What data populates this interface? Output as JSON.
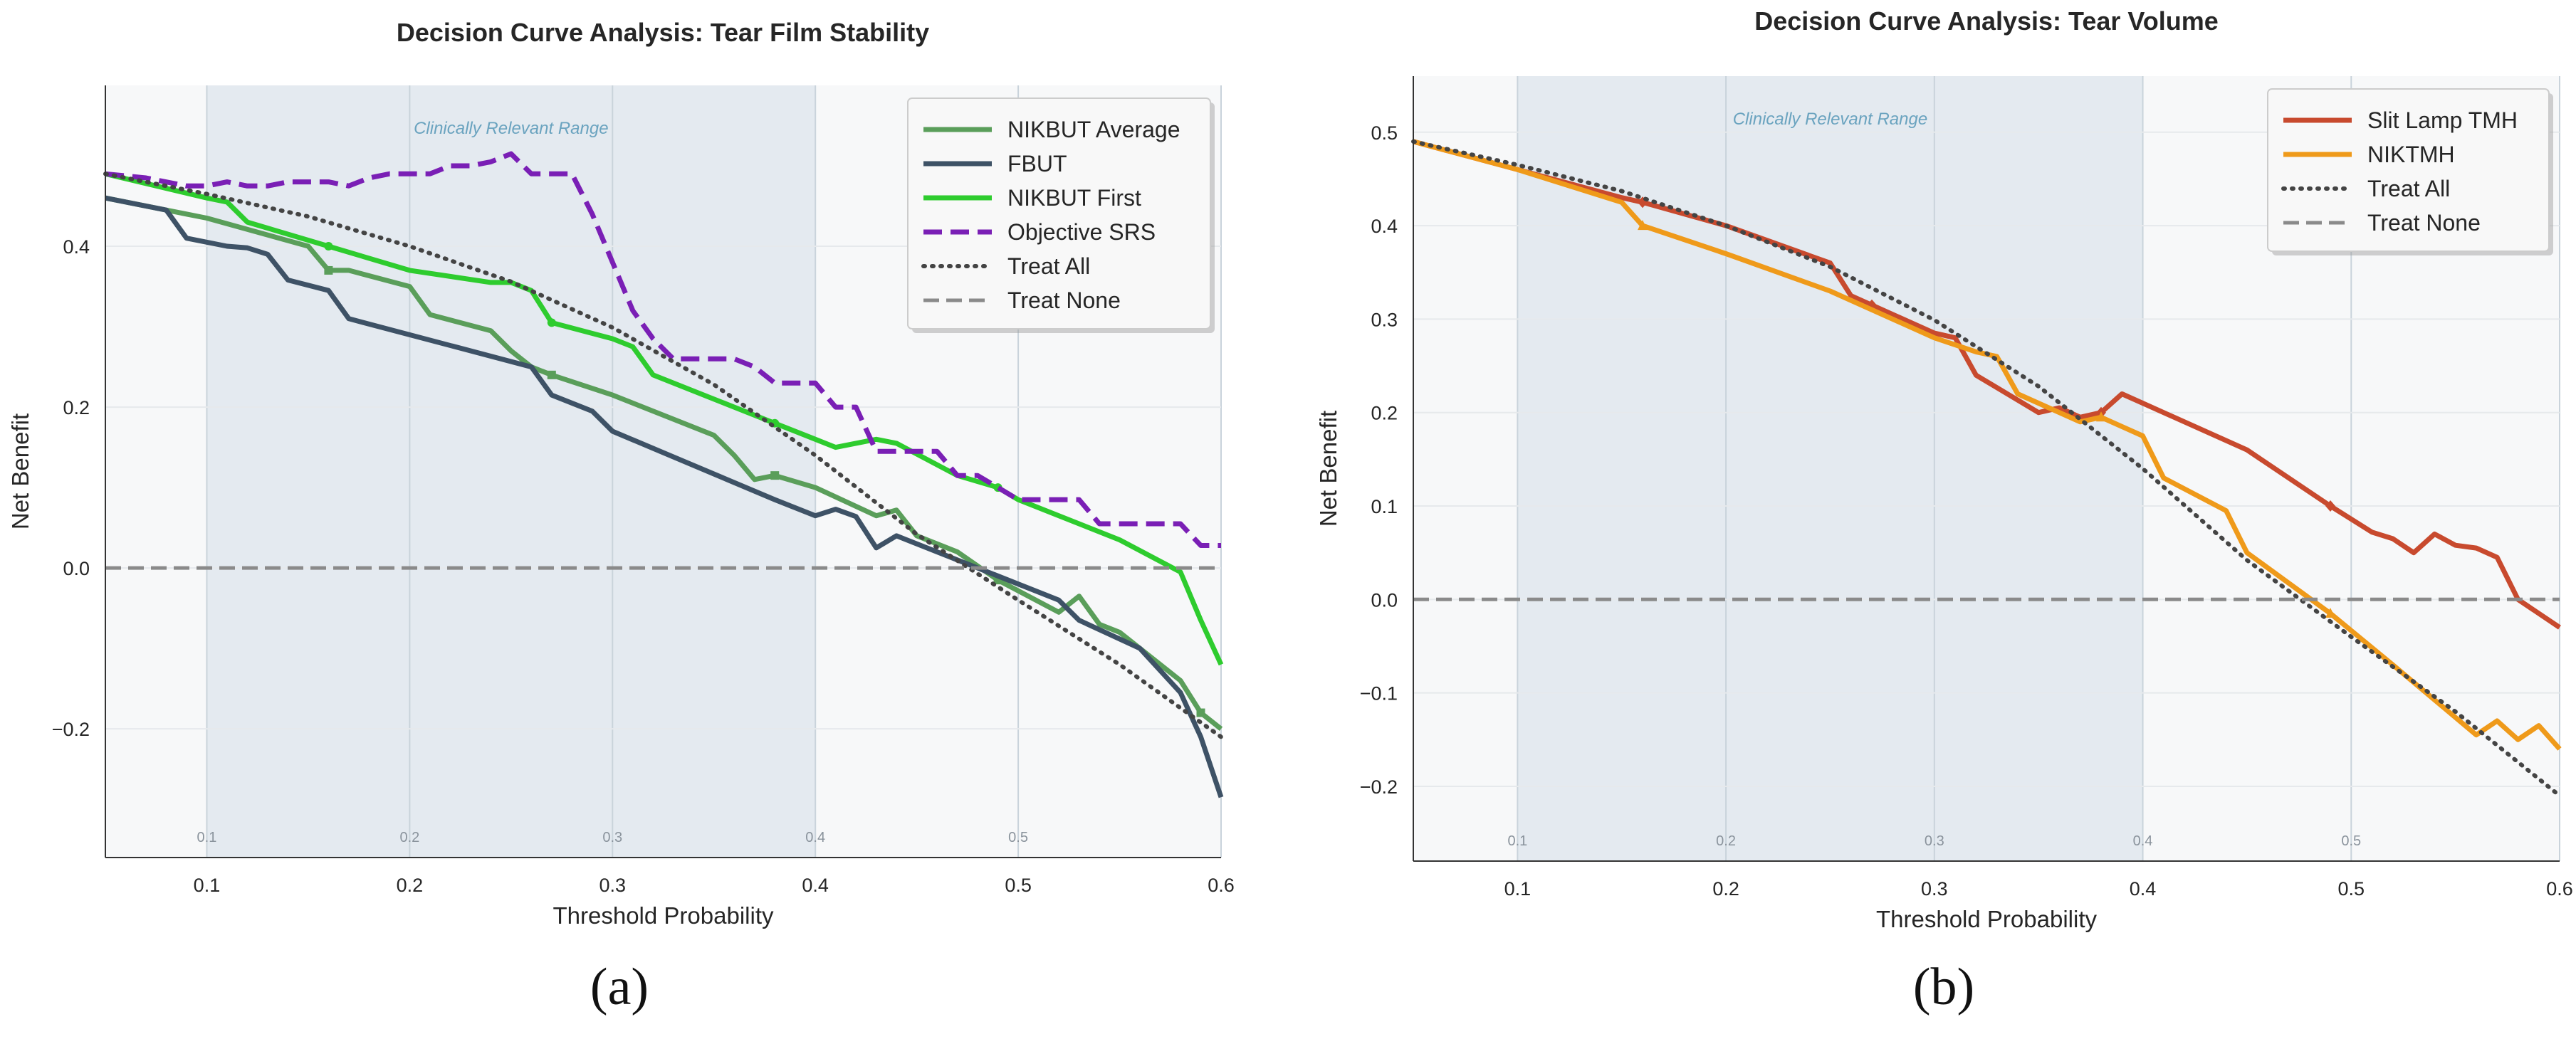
{
  "panel_labels": [
    "(a)",
    "(b)"
  ],
  "chart_data": [
    {
      "type": "line",
      "title": "Decision Curve Analysis: Tear Film Stability",
      "xlabel": "Threshold Probability",
      "ylabel": "Net Benefit",
      "xlim": [
        0.05,
        0.6
      ],
      "ylim": [
        -0.36,
        0.6
      ],
      "xticks": [
        0.1,
        0.2,
        0.3,
        0.4,
        0.5,
        0.6
      ],
      "xtick_labels": [
        "0.1",
        "0.2",
        "0.3",
        "0.4",
        "0.5",
        "0.6"
      ],
      "yticks": [
        -0.2,
        0.0,
        0.2,
        0.4
      ],
      "ytick_labels": [
        "−0.2",
        "0.0",
        "0.2",
        "0.4"
      ],
      "inner_xtick_labels": [
        "0.1",
        "0.2",
        "0.3",
        "0.4",
        "0.5"
      ],
      "shaded_range": [
        0.1,
        0.4
      ],
      "shaded_range_label": "Clinically Relevant Range",
      "grid": true,
      "legend_position": "top-right",
      "series": [
        {
          "name": "NIKBUT Average",
          "color": "#5a9e5a",
          "style": "solid",
          "width": 7,
          "marker": "square",
          "x": [
            0.05,
            0.1,
            0.15,
            0.16,
            0.17,
            0.2,
            0.21,
            0.24,
            0.25,
            0.26,
            0.27,
            0.3,
            0.33,
            0.35,
            0.36,
            0.37,
            0.38,
            0.4,
            0.43,
            0.44,
            0.45,
            0.47,
            0.49,
            0.52,
            0.53,
            0.54,
            0.55,
            0.58,
            0.59,
            0.6
          ],
          "y": [
            0.46,
            0.435,
            0.4,
            0.37,
            0.37,
            0.35,
            0.315,
            0.295,
            0.27,
            0.25,
            0.24,
            0.215,
            0.185,
            0.165,
            0.14,
            0.11,
            0.115,
            0.1,
            0.065,
            0.072,
            0.04,
            0.02,
            -0.015,
            -0.055,
            -0.035,
            -0.07,
            -0.08,
            -0.14,
            -0.18,
            -0.2
          ],
          "marker_x": [
            0.16,
            0.27,
            0.38,
            0.49,
            0.59
          ]
        },
        {
          "name": "FBUT",
          "color": "#3e5266",
          "style": "solid",
          "width": 7,
          "marker": "none",
          "x": [
            0.05,
            0.08,
            0.09,
            0.11,
            0.12,
            0.13,
            0.14,
            0.16,
            0.17,
            0.26,
            0.27,
            0.29,
            0.3,
            0.38,
            0.4,
            0.41,
            0.42,
            0.43,
            0.44,
            0.52,
            0.53,
            0.56,
            0.58,
            0.59,
            0.6
          ],
          "y": [
            0.46,
            0.445,
            0.41,
            0.4,
            0.398,
            0.39,
            0.358,
            0.345,
            0.31,
            0.25,
            0.215,
            0.195,
            0.17,
            0.085,
            0.065,
            0.073,
            0.064,
            0.025,
            0.04,
            -0.04,
            -0.065,
            -0.1,
            -0.155,
            -0.21,
            -0.285
          ]
        },
        {
          "name": "NIKBUT First",
          "color": "#2ecc2e",
          "style": "solid",
          "width": 7,
          "marker": "circle",
          "x": [
            0.05,
            0.1,
            0.11,
            0.12,
            0.16,
            0.2,
            0.24,
            0.25,
            0.26,
            0.27,
            0.3,
            0.31,
            0.32,
            0.36,
            0.38,
            0.41,
            0.43,
            0.44,
            0.47,
            0.49,
            0.5,
            0.55,
            0.58,
            0.59,
            0.6
          ],
          "y": [
            0.49,
            0.46,
            0.455,
            0.43,
            0.4,
            0.37,
            0.355,
            0.355,
            0.345,
            0.305,
            0.285,
            0.275,
            0.24,
            0.2,
            0.18,
            0.15,
            0.16,
            0.155,
            0.115,
            0.1,
            0.085,
            0.035,
            -0.005,
            -0.065,
            -0.12
          ],
          "marker_x": [
            0.16,
            0.27,
            0.38,
            0.49
          ]
        },
        {
          "name": "Objective SRS",
          "color": "#7a1fb5",
          "style": "dashed",
          "width": 7,
          "marker": "none",
          "x": [
            0.05,
            0.07,
            0.09,
            0.1,
            0.11,
            0.12,
            0.13,
            0.14,
            0.15,
            0.16,
            0.17,
            0.18,
            0.19,
            0.2,
            0.21,
            0.22,
            0.23,
            0.24,
            0.25,
            0.26,
            0.27,
            0.28,
            0.29,
            0.3,
            0.31,
            0.32,
            0.33,
            0.34,
            0.35,
            0.36,
            0.37,
            0.38,
            0.39,
            0.4,
            0.41,
            0.42,
            0.43,
            0.44,
            0.45,
            0.46,
            0.47,
            0.48,
            0.49,
            0.5,
            0.51,
            0.52,
            0.53,
            0.54,
            0.55,
            0.56,
            0.57,
            0.58,
            0.59,
            0.6
          ],
          "y": [
            0.49,
            0.485,
            0.475,
            0.475,
            0.48,
            0.475,
            0.475,
            0.48,
            0.48,
            0.48,
            0.475,
            0.485,
            0.49,
            0.49,
            0.49,
            0.5,
            0.5,
            0.505,
            0.515,
            0.49,
            0.49,
            0.49,
            0.44,
            0.38,
            0.32,
            0.285,
            0.26,
            0.26,
            0.26,
            0.26,
            0.25,
            0.23,
            0.23,
            0.23,
            0.2,
            0.2,
            0.145,
            0.145,
            0.145,
            0.145,
            0.115,
            0.115,
            0.1,
            0.085,
            0.085,
            0.085,
            0.085,
            0.055,
            0.055,
            0.055,
            0.055,
            0.055,
            0.028,
            0.028
          ]
        },
        {
          "name": "Treat All",
          "color": "#444444",
          "style": "dotted",
          "width": 6,
          "marker": "none",
          "x": [
            0.05,
            0.1,
            0.15,
            0.2,
            0.25,
            0.3,
            0.35,
            0.4,
            0.45,
            0.5,
            0.55,
            0.6
          ],
          "y": [
            0.49,
            0.465,
            0.437,
            0.4,
            0.356,
            0.299,
            0.228,
            0.14,
            0.042,
            -0.04,
            -0.12,
            -0.21
          ]
        },
        {
          "name": "Treat None",
          "color": "#8a8a8a",
          "style": "dashed",
          "width": 5,
          "marker": "none",
          "x": [
            0.05,
            0.6
          ],
          "y": [
            0.0,
            0.0
          ]
        }
      ]
    },
    {
      "type": "line",
      "title": "Decision Curve Analysis: Tear Volume",
      "xlabel": "Threshold Probability",
      "ylabel": "Net Benefit",
      "xlim": [
        0.05,
        0.6
      ],
      "ylim": [
        -0.28,
        0.56
      ],
      "xticks": [
        0.1,
        0.2,
        0.3,
        0.4,
        0.5,
        0.6
      ],
      "xtick_labels": [
        "0.1",
        "0.2",
        "0.3",
        "0.4",
        "0.5",
        "0.6"
      ],
      "yticks": [
        -0.2,
        -0.1,
        0.0,
        0.1,
        0.2,
        0.3,
        0.4,
        0.5
      ],
      "ytick_labels": [
        "−0.2",
        "−0.1",
        "0.0",
        "0.1",
        "0.2",
        "0.3",
        "0.4",
        "0.5"
      ],
      "inner_xtick_labels": [
        "0.1",
        "0.2",
        "0.3",
        "0.4",
        "0.5"
      ],
      "shaded_range": [
        0.1,
        0.4
      ],
      "shaded_range_label": "Clinically Relevant Range",
      "grid": true,
      "legend_position": "top-right",
      "series": [
        {
          "name": "Slit Lamp TMH",
          "color": "#c84a2e",
          "style": "solid",
          "width": 7,
          "marker": "diamond",
          "x": [
            0.05,
            0.1,
            0.15,
            0.16,
            0.2,
            0.25,
            0.26,
            0.27,
            0.3,
            0.31,
            0.32,
            0.35,
            0.36,
            0.37,
            0.38,
            0.39,
            0.4,
            0.45,
            0.49,
            0.51,
            0.52,
            0.53,
            0.54,
            0.55,
            0.56,
            0.57,
            0.58,
            0.6
          ],
          "y": [
            0.49,
            0.46,
            0.43,
            0.425,
            0.4,
            0.36,
            0.325,
            0.315,
            0.285,
            0.28,
            0.24,
            0.2,
            0.205,
            0.195,
            0.2,
            0.22,
            0.21,
            0.16,
            0.1,
            0.072,
            0.065,
            0.05,
            0.07,
            0.058,
            0.055,
            0.045,
            0.0,
            -0.03
          ],
          "marker_x": [
            0.16,
            0.27,
            0.38,
            0.49
          ]
        },
        {
          "name": "NIKTMH",
          "color": "#ef9a1a",
          "style": "solid",
          "width": 7,
          "marker": "triangle",
          "x": [
            0.05,
            0.1,
            0.15,
            0.16,
            0.2,
            0.25,
            0.3,
            0.32,
            0.33,
            0.34,
            0.37,
            0.38,
            0.39,
            0.4,
            0.41,
            0.44,
            0.45,
            0.49,
            0.52,
            0.56,
            0.57,
            0.58,
            0.59,
            0.6
          ],
          "y": [
            0.49,
            0.46,
            0.425,
            0.4,
            0.37,
            0.33,
            0.28,
            0.265,
            0.26,
            0.22,
            0.19,
            0.195,
            0.185,
            0.175,
            0.13,
            0.095,
            0.05,
            -0.015,
            -0.07,
            -0.145,
            -0.13,
            -0.15,
            -0.135,
            -0.16
          ],
          "marker_x": [
            0.16,
            0.27,
            0.38,
            0.49
          ]
        },
        {
          "name": "Treat All",
          "color": "#444444",
          "style": "dotted",
          "width": 6,
          "marker": "none",
          "x": [
            0.05,
            0.1,
            0.15,
            0.2,
            0.25,
            0.3,
            0.35,
            0.4,
            0.45,
            0.5,
            0.55,
            0.6
          ],
          "y": [
            0.49,
            0.465,
            0.437,
            0.4,
            0.356,
            0.299,
            0.228,
            0.14,
            0.042,
            -0.04,
            -0.12,
            -0.21
          ]
        },
        {
          "name": "Treat None",
          "color": "#8a8a8a",
          "style": "dashed",
          "width": 5,
          "marker": "none",
          "x": [
            0.05,
            0.6
          ],
          "y": [
            0.0,
            0.0
          ]
        }
      ]
    }
  ]
}
